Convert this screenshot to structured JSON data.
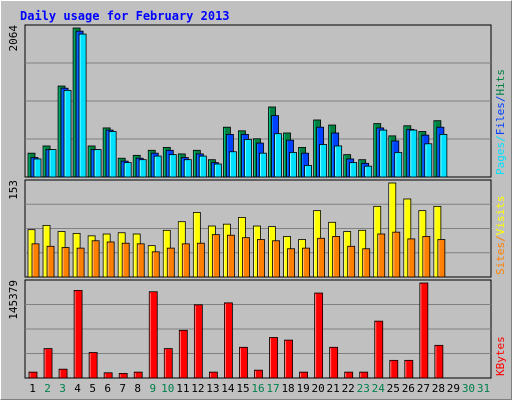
{
  "title": "Daily usage for February 2013",
  "colors": {
    "background": "#c0c0c0",
    "plot_bg": "#c0c0c0",
    "title": "#0000ff",
    "hits": "#008040",
    "hits_light": "#00c080",
    "files": "#0040ff",
    "files_light": "#0080ff",
    "pages": "#00e0ff",
    "pages_light": "#80ffff",
    "visits": "#ffff00",
    "visits_light": "#ffff80",
    "sites": "#ff8000",
    "sites_light": "#ffc080",
    "kbytes": "#ff0000",
    "kbytes_light": "#ff8080",
    "grid": "#808080",
    "day_weekday": "#000000",
    "day_weekend": "#00804c"
  },
  "chart_data": [
    {
      "type": "bar",
      "panel": "hits-files-pages",
      "categories": [
        "1",
        "2",
        "3",
        "4",
        "5",
        "6",
        "7",
        "8",
        "9",
        "10",
        "11",
        "12",
        "13",
        "14",
        "15",
        "16",
        "17",
        "18",
        "19",
        "20",
        "21",
        "22",
        "23",
        "24",
        "25",
        "26",
        "27",
        "28",
        "29",
        "30",
        "31"
      ],
      "ylim": [
        0,
        2064
      ],
      "ytick_label": "2064",
      "right_labels": [
        {
          "text": "Hits",
          "color_key": "hits"
        },
        {
          "text": "/",
          "color_key": "files"
        },
        {
          "text": "Files",
          "color_key": "files"
        },
        {
          "text": "/",
          "color_key": "pages"
        },
        {
          "text": "Pages",
          "color_key": "pages"
        }
      ],
      "series": [
        {
          "name": "Hits",
          "values": [
            330,
            430,
            1260,
            2064,
            430,
            680,
            260,
            300,
            370,
            410,
            320,
            370,
            240,
            690,
            640,
            530,
            970,
            610,
            410,
            790,
            720,
            310,
            240,
            740,
            570,
            710,
            630,
            780,
            0,
            0,
            0
          ]
        },
        {
          "name": "Files",
          "values": [
            270,
            380,
            1230,
            2020,
            380,
            650,
            220,
            260,
            330,
            370,
            270,
            320,
            200,
            590,
            590,
            470,
            850,
            510,
            330,
            690,
            610,
            250,
            190,
            680,
            500,
            660,
            580,
            690,
            0,
            0,
            0
          ]
        },
        {
          "name": "Pages",
          "values": [
            250,
            380,
            1200,
            1980,
            380,
            630,
            200,
            240,
            290,
            310,
            240,
            290,
            180,
            350,
            520,
            330,
            600,
            340,
            160,
            450,
            430,
            200,
            150,
            650,
            340,
            650,
            460,
            590,
            0,
            0,
            0
          ]
        }
      ]
    },
    {
      "type": "bar",
      "panel": "visits-sites",
      "categories": [
        "1",
        "2",
        "3",
        "4",
        "5",
        "6",
        "7",
        "8",
        "9",
        "10",
        "11",
        "12",
        "13",
        "14",
        "15",
        "16",
        "17",
        "18",
        "19",
        "20",
        "21",
        "22",
        "23",
        "24",
        "25",
        "26",
        "27",
        "28",
        "29",
        "30",
        "31"
      ],
      "ylim": [
        0,
        153
      ],
      "ytick_label": "153",
      "right_labels": [
        {
          "text": "Visits",
          "color_key": "visits"
        },
        {
          "text": "/",
          "color_key": "sites"
        },
        {
          "text": "Sites",
          "color_key": "sites"
        }
      ],
      "series": [
        {
          "name": "Visits",
          "values": [
            77,
            84,
            74,
            71,
            67,
            70,
            72,
            70,
            51,
            76,
            90,
            105,
            83,
            86,
            97,
            83,
            82,
            66,
            61,
            108,
            89,
            74,
            76,
            115,
            153,
            127,
            108,
            115,
            0,
            0,
            0
          ]
        },
        {
          "name": "Sites",
          "values": [
            54,
            50,
            48,
            47,
            59,
            57,
            55,
            54,
            41,
            47,
            54,
            55,
            69,
            68,
            64,
            61,
            59,
            46,
            47,
            63,
            66,
            50,
            46,
            70,
            73,
            62,
            66,
            61,
            0,
            0,
            0
          ]
        }
      ]
    },
    {
      "type": "bar",
      "panel": "kbytes",
      "categories": [
        "1",
        "2",
        "3",
        "4",
        "5",
        "6",
        "7",
        "8",
        "9",
        "10",
        "11",
        "12",
        "13",
        "14",
        "15",
        "16",
        "17",
        "18",
        "19",
        "20",
        "21",
        "22",
        "23",
        "24",
        "25",
        "26",
        "27",
        "28",
        "29",
        "30",
        "31"
      ],
      "ylim": [
        0,
        145379
      ],
      "ytick_label": "145379",
      "right_labels": [
        {
          "text": "KBytes",
          "color_key": "kbytes"
        }
      ],
      "series": [
        {
          "name": "KBytes",
          "values": [
            9000,
            45000,
            13500,
            134000,
            39000,
            8000,
            7000,
            9000,
            132000,
            45000,
            73000,
            112000,
            9000,
            115000,
            47000,
            12000,
            62000,
            58000,
            9000,
            130000,
            47000,
            9000,
            9000,
            87000,
            27000,
            27000,
            145379,
            50000,
            0,
            0,
            0
          ]
        }
      ]
    }
  ],
  "x_axis": {
    "days": [
      "1",
      "2",
      "3",
      "4",
      "5",
      "6",
      "7",
      "8",
      "9",
      "10",
      "11",
      "12",
      "13",
      "14",
      "15",
      "16",
      "17",
      "18",
      "19",
      "20",
      "21",
      "22",
      "23",
      "24",
      "25",
      "26",
      "27",
      "28",
      "29",
      "30",
      "31"
    ],
    "weekend_days": [
      "2",
      "3",
      "9",
      "10",
      "16",
      "17",
      "23",
      "24",
      "30",
      "31"
    ]
  }
}
